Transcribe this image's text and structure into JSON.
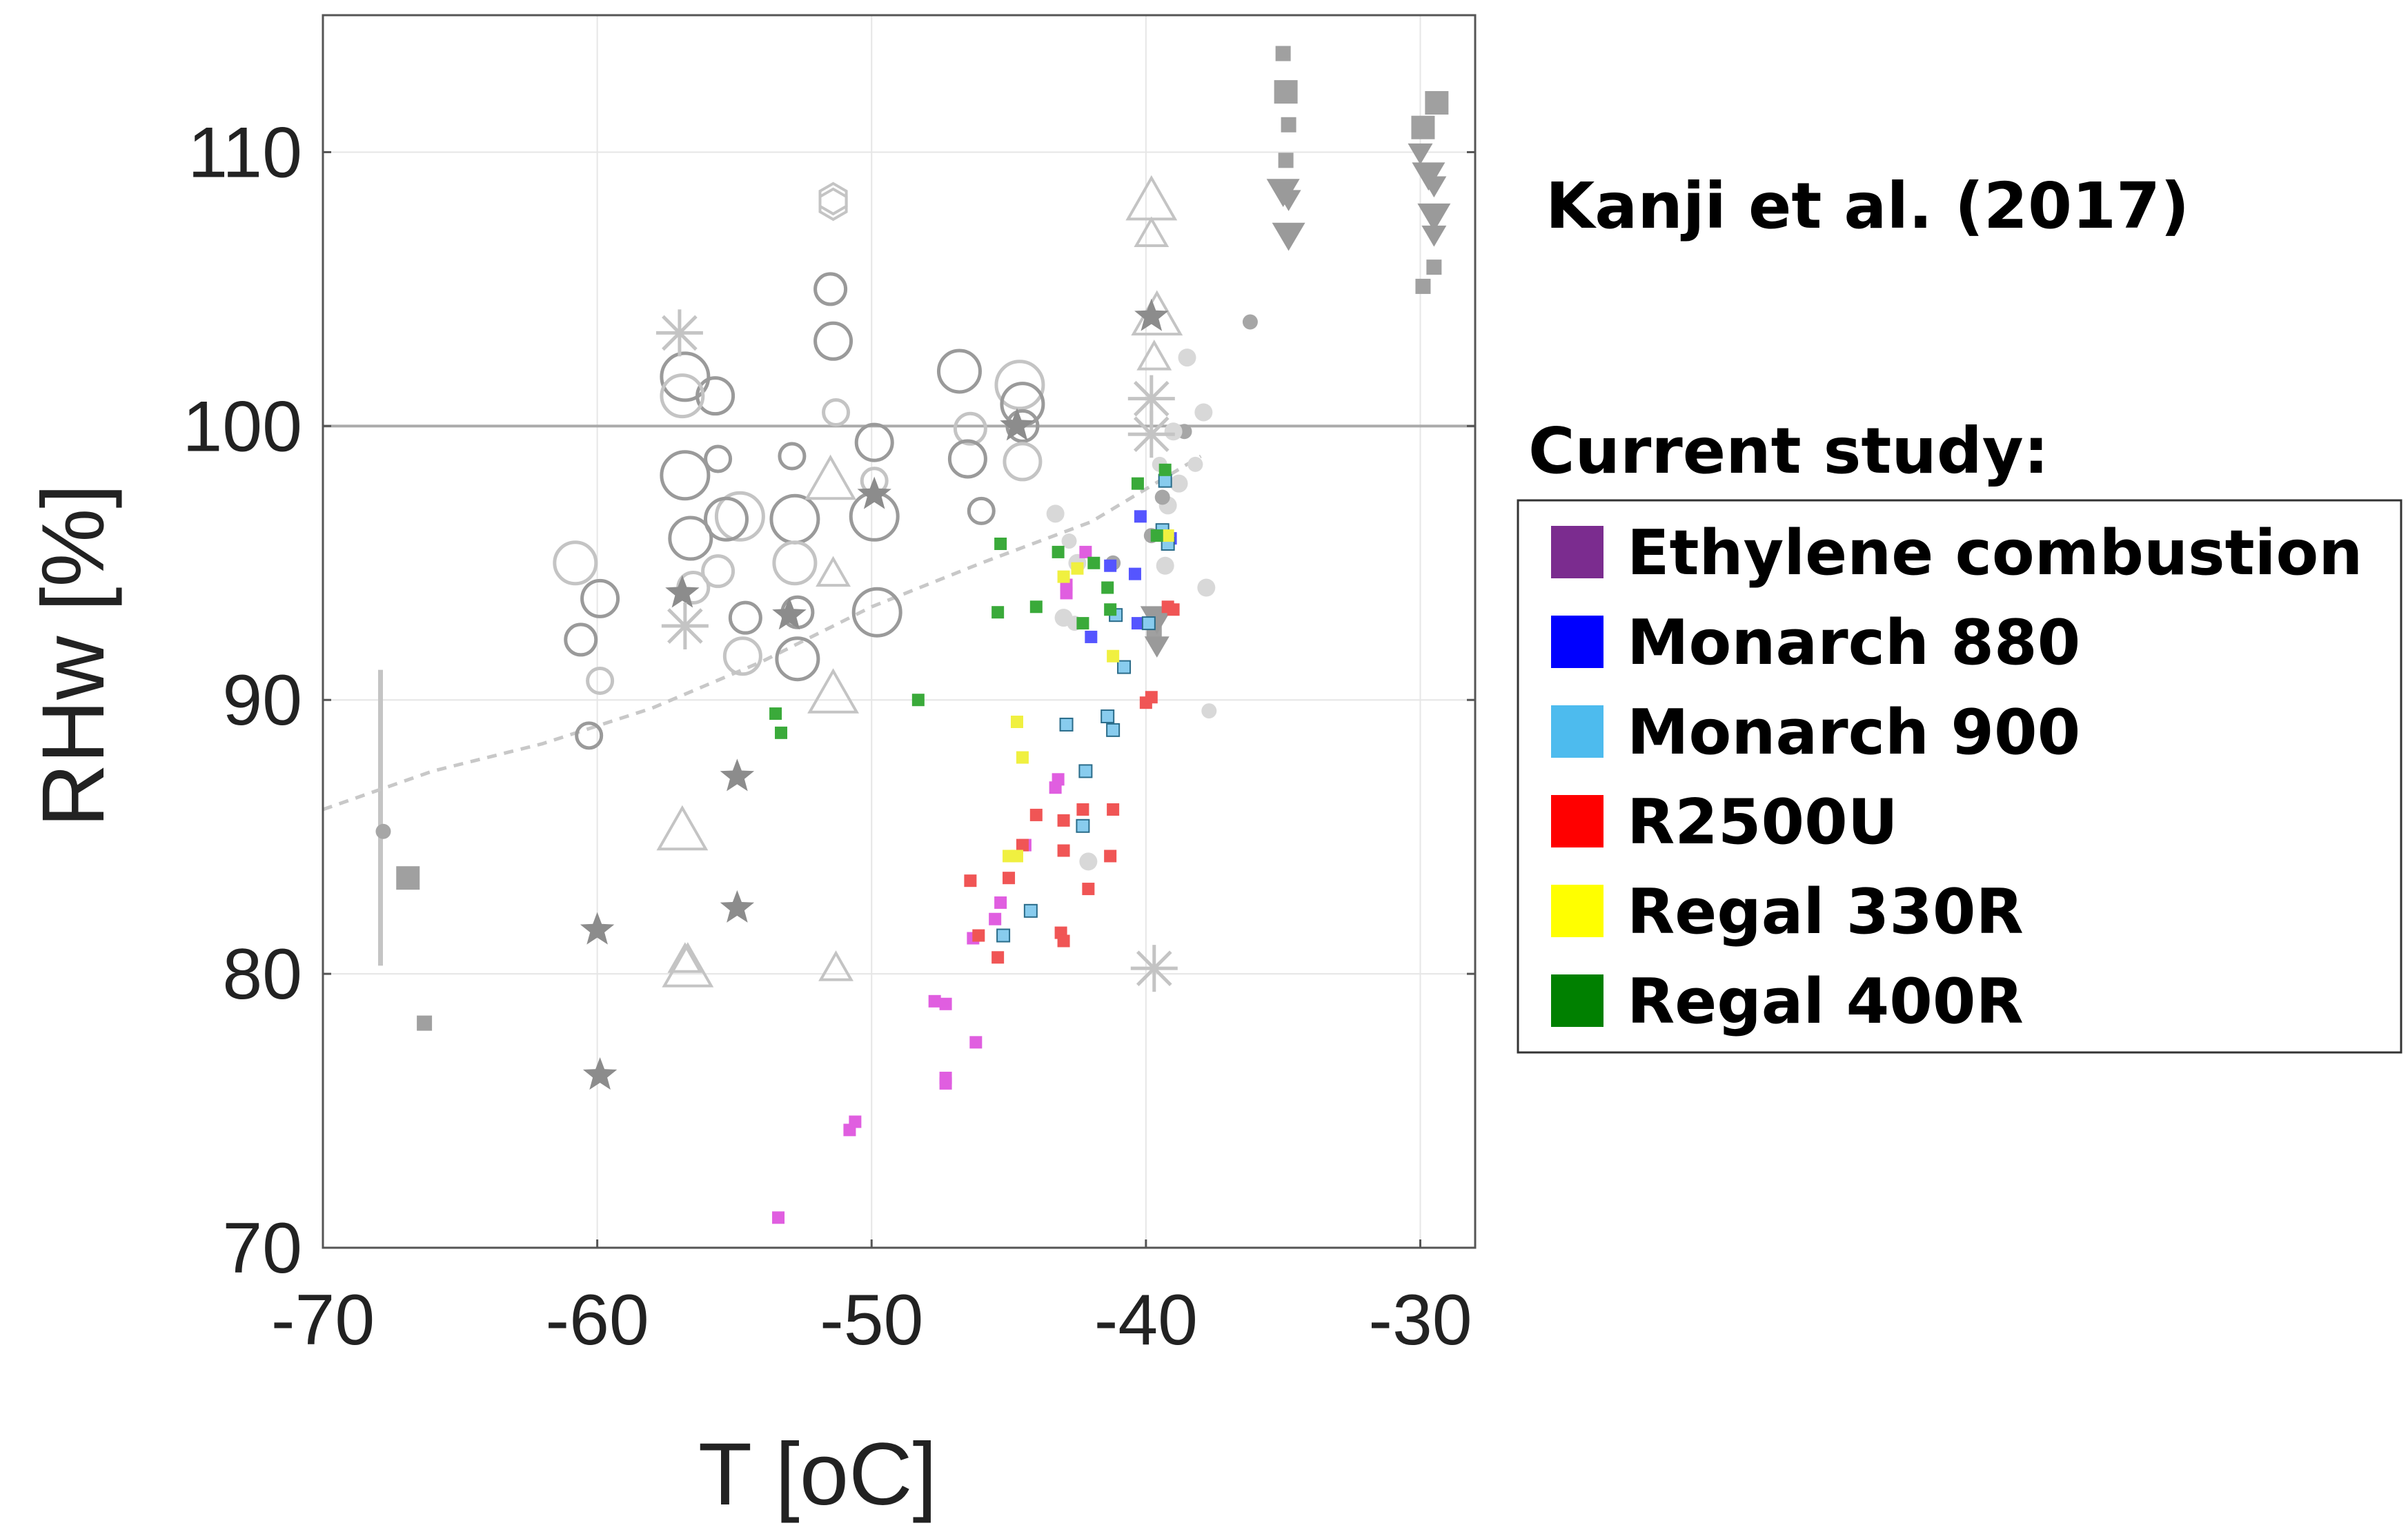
{
  "chart_data": {
    "type": "scatter",
    "xlabel": "T [oC]",
    "ylabel": "RHw [%]",
    "xlim": [
      -70,
      -28
    ],
    "ylim": [
      70,
      115
    ],
    "x_ticks": [
      -70,
      -60,
      -50,
      -40,
      -30
    ],
    "y_ticks": [
      70,
      80,
      90,
      100,
      110
    ],
    "grid": true,
    "reference_label": "Kanji et al. (2017)",
    "legend_title": "Current study:",
    "legend_position": "right",
    "series": [
      {
        "name": "Ethylene combustion",
        "color": "#7b2c8f",
        "marker_color": "#e05ee0",
        "points": [
          [
            -53.4,
            71.1
          ],
          [
            -50.6,
            74.6
          ],
          [
            -50.8,
            74.3
          ],
          [
            -47.3,
            76.2
          ],
          [
            -47.3,
            76.0
          ],
          [
            -46.2,
            77.5
          ],
          [
            -47.7,
            79.0
          ],
          [
            -47.3,
            78.9
          ],
          [
            -45.5,
            82.0
          ],
          [
            -45.3,
            82.6
          ],
          [
            -46.3,
            81.3
          ],
          [
            -43.3,
            86.8
          ],
          [
            -43.2,
            87.1
          ],
          [
            -42.2,
            95.4
          ],
          [
            -42.9,
            94.2
          ],
          [
            -44.4,
            84.7
          ],
          [
            -42.9,
            93.9
          ]
        ]
      },
      {
        "name": "Monarch 880",
        "color": "#0000ff",
        "marker_color": "#5555ff",
        "points": [
          [
            -40.2,
            96.7
          ],
          [
            -40.4,
            94.6
          ],
          [
            -39.1,
            95.9
          ],
          [
            -41.3,
            94.9
          ],
          [
            -42.0,
            92.3
          ],
          [
            -40.3,
            92.8
          ]
        ]
      },
      {
        "name": "Monarch 900",
        "color": "#4dbbee",
        "marker_color": "#88ccee",
        "points": [
          [
            -39.3,
            98.0
          ],
          [
            -39.4,
            96.2
          ],
          [
            -39.2,
            95.7
          ],
          [
            -41.4,
            89.4
          ],
          [
            -41.2,
            88.9
          ],
          [
            -42.9,
            89.1
          ],
          [
            -42.2,
            87.4
          ],
          [
            -42.3,
            85.4
          ],
          [
            -44.2,
            82.3
          ],
          [
            -45.2,
            81.4
          ],
          [
            -40.8,
            91.2
          ],
          [
            -41.1,
            93.1
          ],
          [
            -39.9,
            92.8
          ]
        ]
      },
      {
        "name": "R2500U",
        "color": "#ff0000",
        "marker_color": "#f05555",
        "points": [
          [
            -40.0,
            89.9
          ],
          [
            -39.8,
            90.1
          ],
          [
            -41.2,
            86.0
          ],
          [
            -41.3,
            84.3
          ],
          [
            -42.3,
            86.0
          ],
          [
            -42.1,
            83.1
          ],
          [
            -43.0,
            84.5
          ],
          [
            -44.0,
            85.8
          ],
          [
            -44.5,
            84.7
          ],
          [
            -45.0,
            83.5
          ],
          [
            -46.4,
            83.4
          ],
          [
            -45.4,
            80.6
          ],
          [
            -46.1,
            81.4
          ],
          [
            -43.1,
            81.5
          ],
          [
            -43.0,
            81.2
          ],
          [
            -43.0,
            85.6
          ],
          [
            -39.2,
            93.4
          ],
          [
            -39.0,
            93.3
          ]
        ]
      },
      {
        "name": "Regal 330R",
        "color": "#ffff00",
        "marker_color": "#f0f040",
        "points": [
          [
            -44.7,
            89.2
          ],
          [
            -44.5,
            87.9
          ],
          [
            -44.7,
            84.3
          ],
          [
            -43.0,
            94.5
          ],
          [
            -42.5,
            94.8
          ],
          [
            -41.2,
            91.6
          ],
          [
            -39.2,
            96.0
          ],
          [
            -45.0,
            84.3
          ]
        ]
      },
      {
        "name": "Regal 400R",
        "color": "#008000",
        "marker_color": "#3aaa3a",
        "points": [
          [
            -53.5,
            89.5
          ],
          [
            -53.3,
            88.8
          ],
          [
            -48.3,
            90.0
          ],
          [
            -45.4,
            93.2
          ],
          [
            -44.0,
            93.4
          ],
          [
            -45.3,
            95.7
          ],
          [
            -43.2,
            95.4
          ],
          [
            -42.3,
            92.8
          ],
          [
            -41.4,
            94.1
          ],
          [
            -41.3,
            93.3
          ],
          [
            -40.3,
            97.9
          ],
          [
            -39.6,
            96.0
          ],
          [
            -39.3,
            98.4
          ],
          [
            -41.9,
            95.0
          ]
        ]
      }
    ],
    "literature_background": {
      "color": "#9a9a9a",
      "trend_curve": [
        [
          -70,
          86.0
        ],
        [
          -66,
          87.4
        ],
        [
          -62,
          88.4
        ],
        [
          -58,
          89.7
        ],
        [
          -54,
          91.4
        ],
        [
          -50,
          93.4
        ],
        [
          -46,
          95.0
        ],
        [
          -42,
          96.5
        ],
        [
          -38,
          98.9
        ]
      ],
      "ref_line_y": 100,
      "vertical_bar": {
        "x": -67.9,
        "y_min": 80.3,
        "y_max": 91.1
      },
      "open_circles": [
        [
          -60.8,
          95.0
        ],
        [
          -60.6,
          92.2
        ],
        [
          -59.9,
          93.7
        ],
        [
          -59.9,
          90.7
        ],
        [
          -56.8,
          98.2
        ],
        [
          -56.6,
          95.9
        ],
        [
          -56.5,
          94.1
        ],
        [
          -55.7,
          101.1
        ],
        [
          -55.6,
          98.8
        ],
        [
          -54.8,
          96.7
        ],
        [
          -55.3,
          96.6
        ],
        [
          -54.6,
          93.0
        ],
        [
          -54.7,
          91.6
        ],
        [
          -52.9,
          98.9
        ],
        [
          -52.8,
          96.6
        ],
        [
          -52.8,
          95.0
        ],
        [
          -52.7,
          93.2
        ],
        [
          -49.9,
          99.4
        ],
        [
          -49.9,
          98.0
        ],
        [
          -49.8,
          93.2
        ],
        [
          -46.8,
          102.0
        ],
        [
          -46.4,
          99.9
        ],
        [
          -46.5,
          98.8
        ],
        [
          -46.0,
          96.9
        ],
        [
          -44.6,
          101.5
        ],
        [
          -44.5,
          100.8
        ],
        [
          -44.5,
          100.0
        ],
        [
          -44.5,
          98.7
        ],
        [
          -60.3,
          88.7
        ],
        [
          -56.8,
          101.8
        ],
        [
          -56.9,
          101.1
        ],
        [
          -51.5,
          105.0
        ],
        [
          -51.4,
          103.1
        ],
        [
          -51.3,
          100.5
        ],
        [
          -49.9,
          96.7
        ],
        [
          -52.7,
          91.5
        ],
        [
          -55.6,
          94.7
        ]
      ],
      "filled_circles": [
        [
          -67.8,
          85.2
        ],
        [
          -43.3,
          96.8
        ],
        [
          -42.8,
          95.8
        ],
        [
          -42.5,
          95.0
        ],
        [
          -41.2,
          95.0
        ],
        [
          -43.0,
          93.0
        ],
        [
          -42.6,
          92.8
        ],
        [
          -39.2,
          97.1
        ],
        [
          -39.4,
          97.4
        ],
        [
          -38.8,
          97.9
        ],
        [
          -38.2,
          98.6
        ],
        [
          -37.9,
          100.5
        ],
        [
          -38.6,
          99.8
        ],
        [
          -39.0,
          99.8
        ],
        [
          -39.5,
          98.6
        ],
        [
          -38.5,
          102.5
        ],
        [
          -36.2,
          103.8
        ],
        [
          -37.8,
          94.1
        ],
        [
          -37.7,
          89.6
        ],
        [
          -42.1,
          84.1
        ],
        [
          -39.8,
          96.0
        ],
        [
          -39.3,
          94.9
        ]
      ],
      "open_triangles": [
        [
          -51.5,
          98.0
        ],
        [
          -51.4,
          94.6
        ],
        [
          -56.9,
          85.2
        ],
        [
          -56.8,
          80.5
        ],
        [
          -51.4,
          90.2
        ],
        [
          -51.3,
          80.2
        ],
        [
          -39.8,
          108.2
        ],
        [
          -39.8,
          107.0
        ],
        [
          -39.6,
          104.0
        ],
        [
          -39.7,
          102.5
        ],
        [
          -56.7,
          80.2
        ]
      ],
      "hexagons": [
        [
          -51.4,
          108.3
        ],
        [
          -51.4,
          108.1
        ]
      ],
      "stars": [
        [
          -60.0,
          81.6
        ],
        [
          -59.9,
          76.3
        ],
        [
          -54.9,
          87.2
        ],
        [
          -54.9,
          82.4
        ],
        [
          -53.0,
          93.1
        ],
        [
          -49.9,
          97.5
        ],
        [
          -44.7,
          100.0
        ],
        [
          -56.9,
          93.9
        ],
        [
          -39.8,
          104.0
        ]
      ],
      "asterisks": [
        [
          -57.0,
          103.4
        ],
        [
          -56.8,
          92.7
        ],
        [
          -39.8,
          101.0
        ],
        [
          -39.8,
          99.7
        ],
        [
          -39.7,
          80.2
        ]
      ],
      "filled_squares": [
        [
          -66.9,
          83.5
        ],
        [
          -66.3,
          78.2
        ],
        [
          -35.0,
          113.6
        ],
        [
          -34.9,
          112.2
        ],
        [
          -34.8,
          111.0
        ],
        [
          -34.9,
          109.7
        ],
        [
          -29.9,
          110.9
        ],
        [
          -29.9,
          105.1
        ],
        [
          -29.5,
          105.8
        ],
        [
          -29.4,
          111.8
        ],
        [
          -39.7,
          92.5
        ]
      ],
      "down_triangles": [
        [
          -35.0,
          108.6
        ],
        [
          -34.8,
          108.3
        ],
        [
          -34.8,
          107.0
        ],
        [
          -30.0,
          110.0
        ],
        [
          -29.7,
          109.2
        ],
        [
          -29.5,
          108.8
        ],
        [
          -29.5,
          107.7
        ],
        [
          -29.5,
          107.0
        ],
        [
          -39.6,
          93.0
        ],
        [
          -39.6,
          92.0
        ]
      ]
    }
  }
}
